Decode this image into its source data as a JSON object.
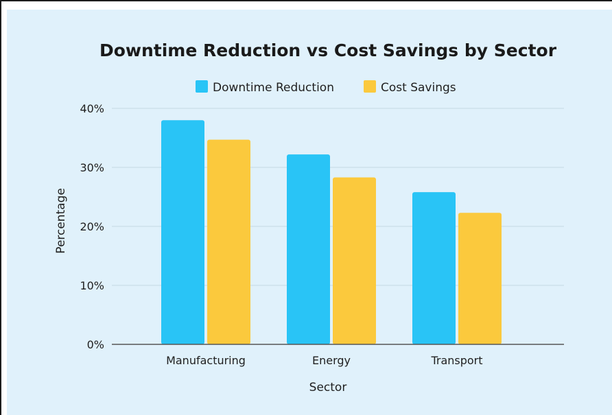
{
  "chart_data": {
    "type": "bar",
    "title": "Downtime Reduction vs Cost Savings by Sector",
    "xlabel": "Sector",
    "ylabel": "Percentage",
    "categories": [
      "Manufacturing",
      "Energy",
      "Transport"
    ],
    "series": [
      {
        "name": "Downtime Reduction",
        "color": "#29c4f6",
        "values": [
          38,
          32.2,
          25.8
        ]
      },
      {
        "name": "Cost Savings",
        "color": "#fbc93d",
        "values": [
          34.7,
          28.3,
          22.3
        ]
      }
    ],
    "ylim": [
      0,
      40
    ],
    "yticks": [
      0,
      10,
      20,
      30,
      40
    ],
    "ytick_labels": [
      "0%",
      "10%",
      "20%",
      "30%",
      "40%"
    ],
    "grid": true,
    "legend_position": "top-center",
    "colors": {
      "background": "#e0f1fb",
      "gridline": "#c5d9e3",
      "axis": "#555555",
      "text": "#1f1f1f"
    }
  }
}
